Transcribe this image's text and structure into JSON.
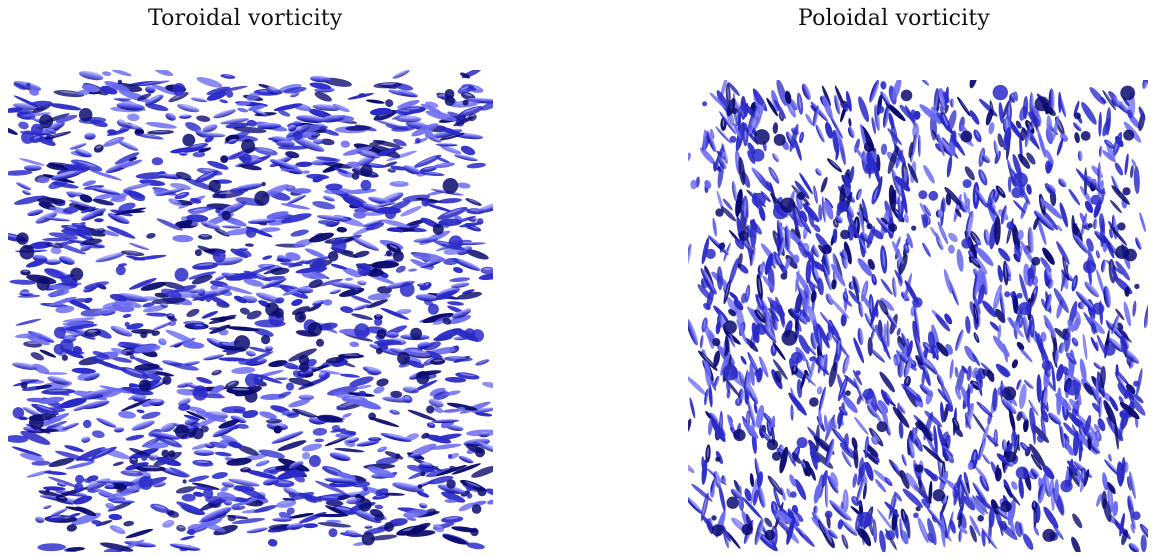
{
  "panels": [
    {
      "title": "Toroidal vorticity",
      "image": "vortex-isosurface-render",
      "orientation": "predominantly-horizontal-filaments"
    },
    {
      "title": "Poloidal vorticity",
      "image": "vortex-isosurface-render",
      "orientation": "predominantly-vertical-filaments"
    }
  ],
  "colors": {
    "background": "#ffffff",
    "isosurface_dark": "#0a0a6e",
    "isosurface_mid": "#2a2ac8",
    "isosurface_light": "#6a6af0",
    "isosurface_highlight": "#b8b8ff"
  }
}
